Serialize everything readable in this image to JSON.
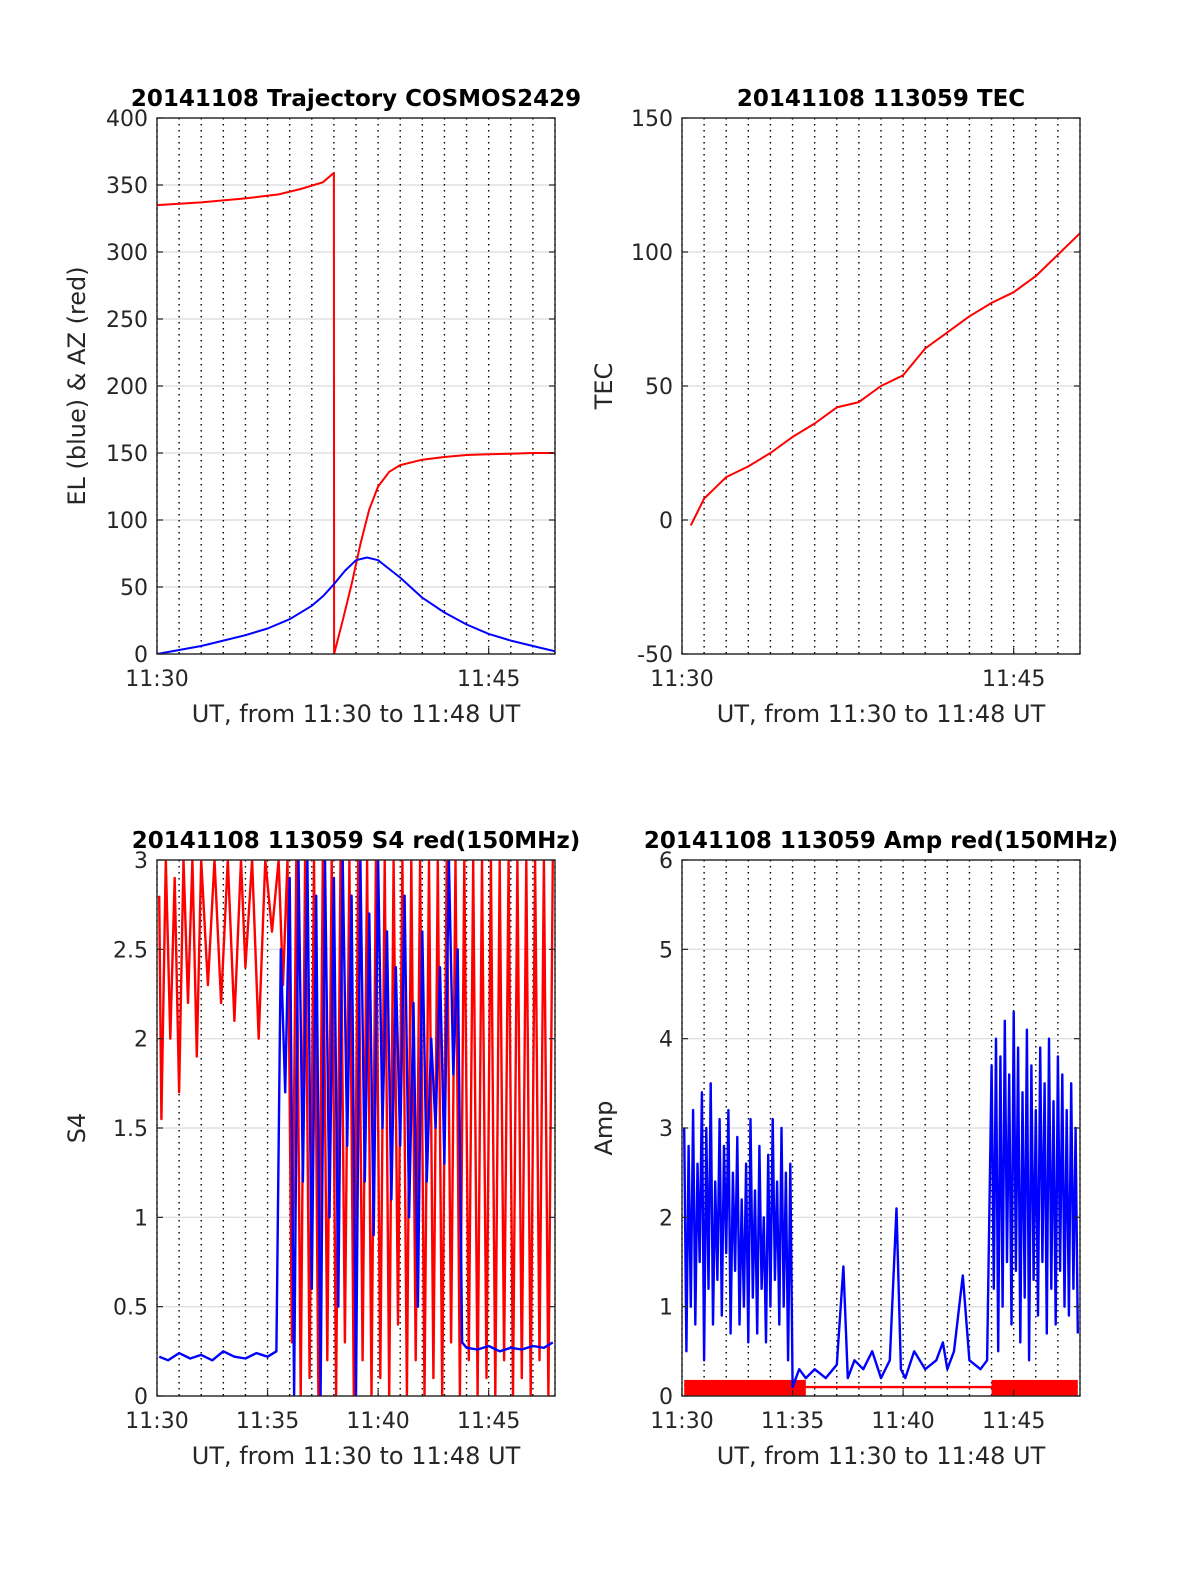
{
  "chart_data": [
    {
      "type": "line",
      "title": "20141108 Trajectory COSMOS2429",
      "xlabel": "UT, from 11:30 to 11:48 UT",
      "ylabel": "EL (blue) & AZ (red)",
      "xlim": [
        0,
        18
      ],
      "ylim": [
        0,
        400
      ],
      "xticks": [
        0,
        15
      ],
      "xtick_labels": [
        "11:30",
        "11:45"
      ],
      "yticks": [
        0,
        50,
        100,
        150,
        200,
        250,
        300,
        350,
        400
      ],
      "ytick_labels": [
        "0",
        "50",
        "100",
        "150",
        "200",
        "250",
        "300",
        "350",
        "400"
      ],
      "grid": true,
      "series": [
        {
          "color": "#ff0000",
          "x": [
            0,
            2,
            4,
            5.5,
            6.5,
            7.5,
            8,
            8.01,
            8.4,
            8.8,
            9.2,
            9.6,
            10,
            10.5,
            11,
            12,
            13,
            14,
            15,
            16,
            17,
            18
          ],
          "y": [
            335,
            337,
            340,
            343,
            347,
            352,
            359,
            0,
            25,
            52,
            82,
            108,
            125,
            136,
            141,
            145,
            147,
            148.5,
            149,
            149.5,
            150,
            150
          ]
        },
        {
          "color": "#0000ff",
          "x": [
            0,
            1,
            2,
            3,
            4,
            5,
            6,
            7,
            7.5,
            8,
            8.5,
            9,
            9.5,
            10,
            11,
            12,
            13,
            14,
            15,
            16,
            17,
            18
          ],
          "y": [
            0,
            3,
            6,
            10,
            14,
            19,
            26,
            36,
            43,
            52,
            62,
            70,
            72,
            70,
            57,
            42,
            31,
            22,
            15,
            10,
            6,
            2
          ]
        }
      ]
    },
    {
      "type": "line",
      "title": "20141108 113059 TEC",
      "xlabel": "UT, from 11:30 to 11:48 UT",
      "ylabel": "TEC",
      "xlim": [
        0,
        18
      ],
      "ylim": [
        -50,
        150
      ],
      "xticks": [
        0,
        15
      ],
      "xtick_labels": [
        "11:30",
        "11:45"
      ],
      "yticks": [
        -50,
        0,
        50,
        100,
        150
      ],
      "ytick_labels": [
        "-50",
        "0",
        "50",
        "100",
        "150"
      ],
      "grid": true,
      "series": [
        {
          "color": "#ff0000",
          "x": [
            0.4,
            0.7,
            1,
            1.5,
            2,
            3,
            4,
            5,
            6,
            7,
            8,
            9,
            10,
            11,
            12,
            13,
            14,
            15,
            16,
            17,
            18
          ],
          "y": [
            -2,
            3,
            8,
            12,
            16,
            20,
            25,
            31,
            36,
            42,
            44,
            50,
            54,
            64,
            70,
            76,
            81,
            85,
            91,
            99,
            107
          ]
        }
      ]
    },
    {
      "type": "line",
      "title": "20141108 113059 S4 red(150MHz)",
      "xlabel": "UT, from 11:30 to 11:48 UT",
      "ylabel": "S4",
      "xlim": [
        0,
        18
      ],
      "ylim": [
        0,
        3
      ],
      "xticks": [
        0,
        5,
        10,
        15
      ],
      "xtick_labels": [
        "11:30",
        "11:35",
        "11:40",
        "11:45"
      ],
      "yticks": [
        0,
        0.5,
        1,
        1.5,
        2,
        2.5,
        3
      ],
      "ytick_labels": [
        "0",
        "0.5",
        "1",
        "1.5",
        "2",
        "2.5",
        "3"
      ],
      "grid": true,
      "series": [
        {
          "color": "#ff0000",
          "x": [
            0.1,
            0.2,
            0.4,
            0.6,
            0.8,
            1.0,
            1.2,
            1.4,
            1.6,
            1.8,
            2.0,
            2.3,
            2.6,
            2.9,
            3.2,
            3.5,
            3.8,
            4.0,
            4.3,
            4.6,
            4.9,
            5.2,
            5.5,
            5.7,
            5.9,
            6.1,
            6.3,
            6.5,
            6.7,
            6.9,
            7.1,
            7.3,
            7.5,
            7.7,
            7.9,
            8.1,
            8.3,
            8.5,
            8.7,
            8.9,
            9.1,
            9.3,
            9.5,
            9.7,
            9.9,
            10.1,
            10.3,
            10.5,
            10.7,
            10.9,
            11.1,
            11.3,
            11.5,
            11.7,
            11.9,
            12.1,
            12.3,
            12.5,
            12.7,
            12.9,
            13.1,
            13.3,
            13.5,
            13.7,
            13.9,
            14.1,
            14.3,
            14.5,
            14.7,
            14.9,
            15.1,
            15.3,
            15.5,
            15.7,
            15.9,
            16.1,
            16.3,
            16.5,
            16.7,
            16.9,
            17.1,
            17.3,
            17.5,
            17.7,
            17.9
          ],
          "y": [
            2.8,
            1.55,
            3.0,
            2.0,
            2.9,
            1.7,
            3.0,
            2.2,
            3.0,
            1.9,
            3.0,
            2.3,
            3.0,
            2.2,
            3.0,
            2.1,
            3.0,
            2.4,
            3.0,
            2.0,
            3.0,
            2.6,
            3.0,
            2.3,
            3.0,
            0.3,
            3.0,
            0.0,
            3.0,
            0.1,
            3.0,
            0.0,
            3.0,
            0.2,
            3.0,
            0.0,
            3.0,
            0.3,
            3.0,
            0.0,
            3.0,
            0.2,
            3.0,
            0.0,
            3.0,
            0.1,
            3.0,
            0.0,
            3.0,
            0.4,
            3.0,
            0.0,
            3.0,
            0.2,
            3.0,
            0.0,
            3.0,
            0.1,
            3.0,
            0.0,
            3.0,
            0.3,
            3.0,
            0.0,
            3.0,
            0.2,
            3.0,
            0.0,
            3.0,
            0.1,
            3.0,
            0.0,
            3.0,
            0.2,
            3.0,
            0.0,
            3.0,
            0.1,
            3.0,
            0.0,
            3.0,
            0.2,
            3.0,
            0.0,
            3.0
          ]
        },
        {
          "color": "#0000ff",
          "x": [
            0.1,
            0.5,
            1.0,
            1.5,
            2.0,
            2.5,
            3.0,
            3.5,
            4.0,
            4.5,
            5.0,
            5.4,
            5.6,
            5.8,
            6.0,
            6.2,
            6.4,
            6.6,
            6.8,
            7.0,
            7.2,
            7.4,
            7.6,
            7.8,
            8.0,
            8.2,
            8.4,
            8.6,
            8.8,
            9.0,
            9.2,
            9.4,
            9.6,
            9.8,
            10.0,
            10.2,
            10.4,
            10.6,
            10.8,
            11.0,
            11.2,
            11.4,
            11.6,
            11.8,
            12.0,
            12.2,
            12.4,
            12.6,
            12.8,
            13.0,
            13.2,
            13.4,
            13.6,
            13.8,
            14.0,
            14.5,
            15.0,
            15.5,
            16.0,
            16.5,
            17.0,
            17.5,
            17.9
          ],
          "y": [
            0.22,
            0.2,
            0.24,
            0.21,
            0.23,
            0.2,
            0.25,
            0.22,
            0.21,
            0.24,
            0.22,
            0.25,
            2.5,
            1.7,
            2.9,
            0.0,
            3.0,
            1.2,
            3.0,
            0.6,
            2.8,
            0.0,
            3.0,
            1.0,
            2.9,
            0.5,
            3.0,
            1.4,
            2.8,
            0.0,
            3.0,
            1.2,
            2.7,
            0.9,
            3.0,
            1.5,
            2.6,
            1.1,
            2.4,
            1.4,
            2.8,
            1.0,
            2.2,
            0.5,
            2.6,
            1.2,
            2.0,
            1.5,
            2.4,
            1.3,
            3.0,
            1.8,
            2.5,
            0.3,
            0.27,
            0.26,
            0.28,
            0.25,
            0.27,
            0.26,
            0.28,
            0.27,
            0.3
          ]
        }
      ]
    },
    {
      "type": "line",
      "title": "20141108 113059 Amp red(150MHz)",
      "xlabel": "UT, from 11:30 to 11:48 UT",
      "ylabel": "Amp",
      "xlim": [
        0,
        18
      ],
      "ylim": [
        0,
        6
      ],
      "xticks": [
        0,
        5,
        10,
        15
      ],
      "xtick_labels": [
        "11:30",
        "11:35",
        "11:40",
        "11:45"
      ],
      "yticks": [
        0,
        1,
        2,
        3,
        4,
        5,
        6
      ],
      "ytick_labels": [
        "0",
        "1",
        "2",
        "3",
        "4",
        "5",
        "6"
      ],
      "grid": true,
      "series": [
        {
          "color": "#ff0000",
          "x": [
            0.1,
            1,
            2,
            3,
            4,
            5,
            5.5,
            14,
            14.5,
            15,
            16,
            17,
            17.9
          ],
          "y": [
            0.12,
            0.14,
            0.1,
            0.13,
            0.11,
            0.12,
            0.1,
            0.1,
            0.1,
            0.12,
            0.11,
            0.1,
            0.1
          ],
          "fill_band": [
            0,
            0.18
          ]
        },
        {
          "color": "#0000ff",
          "x": [
            0.1,
            0.2,
            0.3,
            0.4,
            0.5,
            0.6,
            0.7,
            0.8,
            0.9,
            1.0,
            1.1,
            1.2,
            1.3,
            1.4,
            1.5,
            1.6,
            1.7,
            1.8,
            1.9,
            2.0,
            2.1,
            2.2,
            2.3,
            2.4,
            2.5,
            2.6,
            2.7,
            2.8,
            2.9,
            3.0,
            3.1,
            3.2,
            3.3,
            3.4,
            3.5,
            3.6,
            3.7,
            3.8,
            3.9,
            4.0,
            4.1,
            4.2,
            4.3,
            4.4,
            4.5,
            4.6,
            4.7,
            4.8,
            4.9,
            5.0,
            5.3,
            5.6,
            6.0,
            6.5,
            7.0,
            7.3,
            7.5,
            7.8,
            8.2,
            8.6,
            9.0,
            9.4,
            9.7,
            9.9,
            10.1,
            10.5,
            11.0,
            11.5,
            11.8,
            12.0,
            12.3,
            12.7,
            13.0,
            13.5,
            13.8,
            14.0,
            14.1,
            14.2,
            14.3,
            14.4,
            14.5,
            14.6,
            14.7,
            14.8,
            14.9,
            15.0,
            15.1,
            15.2,
            15.3,
            15.4,
            15.5,
            15.6,
            15.7,
            15.8,
            15.9,
            16.0,
            16.1,
            16.2,
            16.3,
            16.4,
            16.5,
            16.6,
            16.7,
            16.8,
            16.9,
            17.0,
            17.1,
            17.2,
            17.3,
            17.4,
            17.5,
            17.6,
            17.7,
            17.8,
            17.9
          ],
          "y": [
            3.0,
            0.5,
            2.8,
            1.0,
            3.2,
            0.8,
            2.6,
            1.5,
            3.4,
            0.4,
            3.0,
            1.2,
            3.5,
            0.8,
            2.4,
            1.3,
            3.1,
            0.9,
            2.8,
            1.6,
            3.2,
            0.7,
            2.5,
            1.4,
            2.9,
            0.8,
            2.2,
            1.0,
            2.6,
            0.6,
            3.1,
            1.1,
            2.3,
            0.7,
            2.8,
            1.2,
            2.0,
            0.6,
            2.7,
            1.0,
            3.1,
            1.3,
            2.4,
            0.8,
            3.0,
            1.0,
            2.5,
            0.4,
            2.6,
            0.1,
            0.3,
            0.2,
            0.3,
            0.2,
            0.35,
            1.45,
            0.2,
            0.4,
            0.3,
            0.5,
            0.2,
            0.4,
            2.1,
            0.3,
            0.2,
            0.5,
            0.3,
            0.4,
            0.6,
            0.3,
            0.5,
            1.35,
            0.4,
            0.3,
            0.4,
            3.7,
            1.2,
            4.0,
            0.5,
            3.8,
            1.0,
            4.2,
            1.5,
            3.6,
            0.8,
            4.3,
            1.4,
            3.9,
            0.6,
            3.4,
            1.1,
            4.1,
            0.4,
            3.7,
            1.3,
            3.2,
            0.9,
            3.9,
            1.5,
            3.5,
            0.7,
            4.0,
            1.2,
            3.3,
            0.8,
            3.8,
            1.4,
            3.6,
            1.0,
            3.2,
            0.9,
            3.5,
            1.2,
            3.0,
            0.7
          ]
        }
      ]
    }
  ]
}
